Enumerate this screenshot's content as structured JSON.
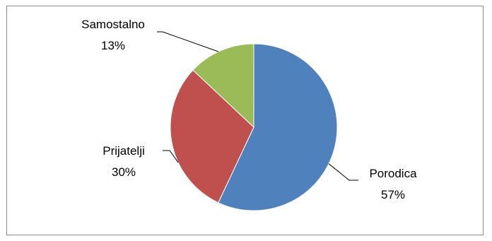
{
  "chart_data": {
    "type": "pie",
    "title": "",
    "categories": [
      "Porodica",
      "Prijatelji",
      "Samostalno"
    ],
    "values": [
      57,
      30,
      13
    ],
    "labels": [
      {
        "name": "Porodica",
        "value_label": "57%"
      },
      {
        "name": "Prijatelji",
        "value_label": "30%"
      },
      {
        "name": "Samostalno",
        "value_label": "13%"
      }
    ],
    "colors": [
      "#4f81bd",
      "#c0504d",
      "#9bbb59"
    ],
    "start_angle_deg": 0,
    "direction": "clockwise",
    "legend": "none",
    "data_labels": "outside-with-leader-lines"
  }
}
